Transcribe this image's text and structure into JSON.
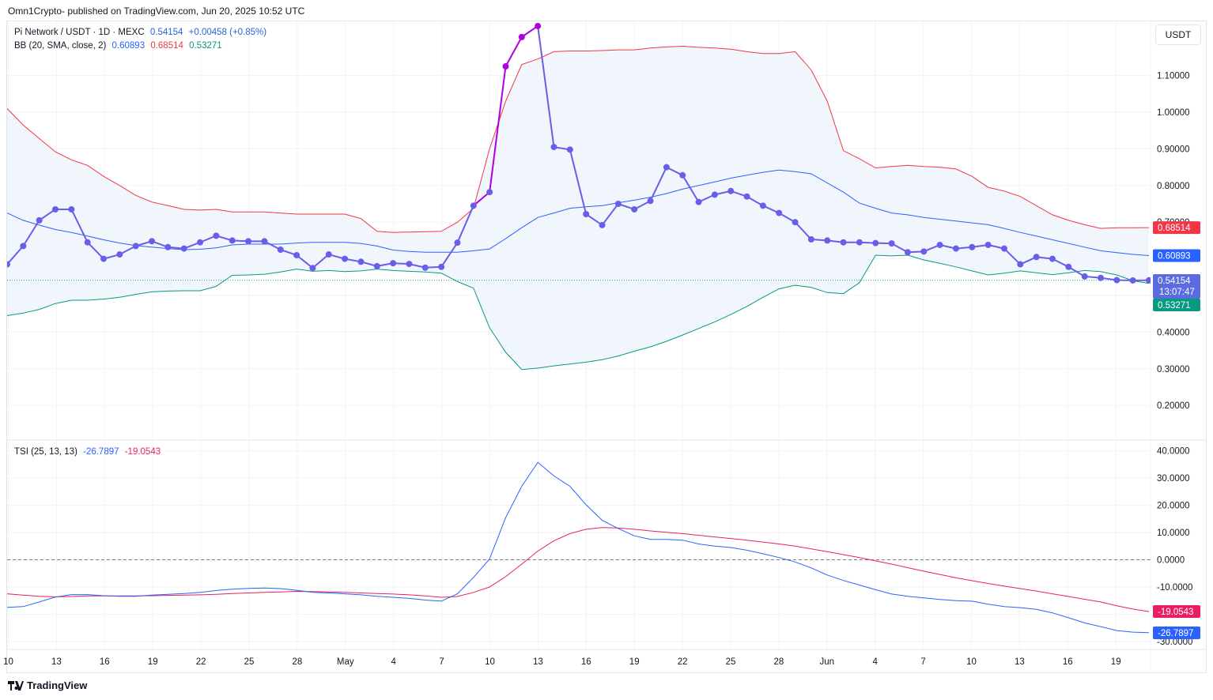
{
  "header": {
    "publisher": "Omn1Crypto- published on TradingView.com, Jun 20, 2025 10:52 UTC"
  },
  "legend": {
    "symbol": "Pi Network / USDT · 1D · MEXC",
    "last_price": "0.54154",
    "change": "+0.00458 (+0.85%)",
    "bb_label": "BB (20, SMA, close, 2)",
    "bb_basis": "0.60893",
    "bb_upper": "0.68514",
    "bb_lower": "0.53271",
    "tsi_label": "TSI (25, 13, 13)",
    "tsi_value": "-26.7897",
    "tsi_signal": "-19.0543"
  },
  "currency": "USDT",
  "footer": {
    "brand": "TradingView"
  },
  "colors": {
    "price_line": "#6a5ee8",
    "price_spike": "#b000e0",
    "bb_upper": "#f23645",
    "bb_basis": "#2962ff",
    "bb_lower": "#089981",
    "bb_fill": "#eef5fc",
    "tsi": "#2962ff",
    "tsi_signal": "#e91e63"
  },
  "badges": {
    "bb_upper": "0.68514",
    "bb_basis": "0.60893",
    "price": "0.54154",
    "countdown": "13:07:47",
    "bb_lower": "0.53271",
    "tsi_signal": "-19.0543",
    "tsi": "-26.7897"
  },
  "chart_data": [
    {
      "type": "line",
      "name": "price",
      "x_tick_labels": [
        "10",
        "13",
        "16",
        "19",
        "22",
        "25",
        "28",
        "May",
        "4",
        "7",
        "10",
        "13",
        "16",
        "19",
        "22",
        "25",
        "28",
        "Jun",
        "4",
        "7",
        "10",
        "13",
        "16",
        "19"
      ],
      "y_tick_labels": [
        "0.20000",
        "0.30000",
        "0.40000",
        "0.50000",
        "0.60000",
        "0.70000",
        "0.80000",
        "0.90000",
        "1.00000",
        "1.10000"
      ],
      "ylim": [
        0.1,
        1.25
      ],
      "close": [
        0.585,
        0.635,
        0.705,
        0.735,
        0.735,
        0.645,
        0.6,
        0.612,
        0.635,
        0.648,
        0.632,
        0.628,
        0.645,
        0.663,
        0.65,
        0.648,
        0.648,
        0.625,
        0.61,
        0.575,
        0.612,
        0.6,
        0.592,
        0.58,
        0.588,
        0.586,
        0.576,
        0.578,
        0.644,
        0.745,
        0.782,
        1.125,
        1.205,
        1.235,
        0.905,
        0.898,
        0.722,
        0.692,
        0.75,
        0.735,
        0.758,
        0.85,
        0.828,
        0.755,
        0.775,
        0.785,
        0.77,
        0.745,
        0.725,
        0.7,
        0.653,
        0.65,
        0.645,
        0.645,
        0.643,
        0.642,
        0.618,
        0.62,
        0.638,
        0.628,
        0.632,
        0.638,
        0.628,
        0.585,
        0.605,
        0.6,
        0.578,
        0.552,
        0.548,
        0.542,
        0.541,
        0.5415
      ],
      "bb_upper": [
        1.01,
        0.965,
        0.928,
        0.892,
        0.87,
        0.855,
        0.825,
        0.8,
        0.773,
        0.755,
        0.745,
        0.735,
        0.733,
        0.735,
        0.728,
        0.728,
        0.728,
        0.725,
        0.722,
        0.722,
        0.722,
        0.722,
        0.71,
        0.675,
        0.672,
        0.673,
        0.674,
        0.675,
        0.7,
        0.738,
        0.9,
        1.03,
        1.13,
        1.145,
        1.165,
        1.167,
        1.167,
        1.168,
        1.17,
        1.17,
        1.175,
        1.178,
        1.18,
        1.177,
        1.175,
        1.172,
        1.165,
        1.16,
        1.16,
        1.165,
        1.115,
        1.03,
        0.895,
        0.873,
        0.848,
        0.852,
        0.855,
        0.852,
        0.85,
        0.845,
        0.825,
        0.795,
        0.785,
        0.77,
        0.745,
        0.72,
        0.705,
        0.693,
        0.683,
        0.685,
        0.685,
        0.68514
      ],
      "bb_basis": [
        0.725,
        0.705,
        0.692,
        0.68,
        0.672,
        0.662,
        0.652,
        0.643,
        0.636,
        0.632,
        0.628,
        0.625,
        0.626,
        0.63,
        0.638,
        0.64,
        0.64,
        0.64,
        0.643,
        0.645,
        0.645,
        0.645,
        0.642,
        0.635,
        0.624,
        0.62,
        0.618,
        0.618,
        0.618,
        0.622,
        0.627,
        0.655,
        0.685,
        0.713,
        0.725,
        0.738,
        0.742,
        0.745,
        0.753,
        0.76,
        0.768,
        0.778,
        0.79,
        0.8,
        0.81,
        0.82,
        0.828,
        0.836,
        0.842,
        0.838,
        0.832,
        0.807,
        0.782,
        0.752,
        0.738,
        0.725,
        0.72,
        0.713,
        0.708,
        0.703,
        0.698,
        0.693,
        0.683,
        0.672,
        0.662,
        0.652,
        0.642,
        0.632,
        0.622,
        0.617,
        0.612,
        0.60893
      ],
      "bb_lower": [
        0.445,
        0.452,
        0.462,
        0.478,
        0.487,
        0.487,
        0.49,
        0.495,
        0.503,
        0.51,
        0.512,
        0.513,
        0.513,
        0.525,
        0.555,
        0.556,
        0.558,
        0.564,
        0.572,
        0.566,
        0.568,
        0.565,
        0.567,
        0.572,
        0.568,
        0.566,
        0.564,
        0.561,
        0.538,
        0.52,
        0.412,
        0.345,
        0.298,
        0.302,
        0.308,
        0.313,
        0.318,
        0.325,
        0.335,
        0.348,
        0.36,
        0.375,
        0.392,
        0.41,
        0.428,
        0.448,
        0.47,
        0.495,
        0.518,
        0.528,
        0.522,
        0.508,
        0.505,
        0.535,
        0.61,
        0.608,
        0.61,
        0.597,
        0.588,
        0.578,
        0.567,
        0.556,
        0.561,
        0.567,
        0.562,
        0.557,
        0.562,
        0.568,
        0.565,
        0.556,
        0.54,
        0.53271
      ]
    },
    {
      "type": "line",
      "name": "TSI",
      "y_tick_labels": [
        "-30.0000",
        "-20.0000",
        "-10.0000",
        "0.0000",
        "10.0000",
        "20.0000",
        "30.0000",
        "40.0000"
      ],
      "ylim": [
        -32,
        41
      ],
      "tsi": [
        -17.5,
        -17.2,
        -15.5,
        -13.7,
        -12.8,
        -12.8,
        -13.2,
        -13.4,
        -13.4,
        -13.0,
        -12.7,
        -12.4,
        -12.0,
        -11.3,
        -10.8,
        -10.5,
        -10.4,
        -10.6,
        -11.2,
        -12.0,
        -12.2,
        -12.5,
        -12.9,
        -13.4,
        -13.8,
        -14.2,
        -14.8,
        -15.2,
        -12.5,
        -6.5,
        0.3,
        15.5,
        27.0,
        35.8,
        30.8,
        27.0,
        20.2,
        14.5,
        11.5,
        8.8,
        7.5,
        7.5,
        7.2,
        5.8,
        5.0,
        4.5,
        3.5,
        2.2,
        0.8,
        -0.8,
        -3.0,
        -5.6,
        -7.6,
        -9.3,
        -11.0,
        -12.6,
        -13.4,
        -14.0,
        -14.6,
        -15.0,
        -15.2,
        -16.3,
        -17.2,
        -17.6,
        -18.2,
        -19.5,
        -21.3,
        -23.2,
        -24.6,
        -26.0,
        -26.6,
        -26.7897
      ],
      "signal": [
        -12.5,
        -13.0,
        -13.4,
        -13.6,
        -13.5,
        -13.3,
        -13.3,
        -13.3,
        -13.3,
        -13.2,
        -13.1,
        -13.0,
        -12.9,
        -12.7,
        -12.4,
        -12.2,
        -12.0,
        -11.8,
        -11.6,
        -11.7,
        -11.8,
        -12.0,
        -12.2,
        -12.4,
        -12.6,
        -12.9,
        -13.3,
        -13.8,
        -13.5,
        -12.0,
        -10.0,
        -6.2,
        -1.6,
        3.2,
        7.0,
        9.6,
        11.2,
        11.8,
        11.7,
        11.2,
        10.6,
        10.1,
        9.6,
        9.0,
        8.4,
        7.8,
        7.2,
        6.5,
        5.8,
        5.0,
        4.0,
        3.0,
        1.9,
        0.8,
        -0.4,
        -1.6,
        -2.9,
        -4.2,
        -5.4,
        -6.6,
        -7.7,
        -8.7,
        -9.7,
        -10.6,
        -11.5,
        -12.5,
        -13.5,
        -14.5,
        -15.5,
        -16.9,
        -18.1,
        -19.0543
      ]
    }
  ]
}
